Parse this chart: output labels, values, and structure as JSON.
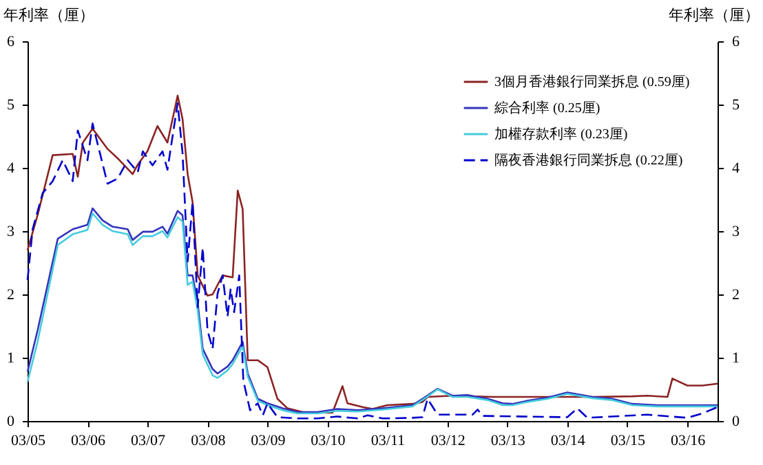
{
  "chart_data": {
    "type": "line",
    "ylabel": "年利率（厘）",
    "y2label": "年利率（厘）",
    "legend": "top right",
    "line_style": "solid",
    "xlim": [
      "2005-03",
      "2016-09"
    ],
    "xticks": [
      {
        "value": "2005-03",
        "label": "03/05"
      },
      {
        "value": "2006-03",
        "label": "03/06"
      },
      {
        "value": "2007-03",
        "label": "03/07"
      },
      {
        "value": "2008-03",
        "label": "03/08"
      },
      {
        "value": "2009-03",
        "label": "03/09"
      },
      {
        "value": "2010-03",
        "label": "03/10"
      },
      {
        "value": "2011-03",
        "label": "03/11"
      },
      {
        "value": "2012-03",
        "label": "03/12"
      },
      {
        "value": "2013-03",
        "label": "03/13"
      },
      {
        "value": "2014-03",
        "label": "03/14"
      },
      {
        "value": "2015-03",
        "label": "03/15"
      },
      {
        "value": "2016-03",
        "label": "03/16"
      }
    ],
    "ylim": [
      0,
      6
    ],
    "yticks": [
      0,
      1,
      2,
      3,
      4,
      5,
      6
    ],
    "y2lim": [
      0,
      6
    ],
    "y2ticks": [
      0,
      1,
      2,
      3,
      4,
      5,
      6
    ],
    "series": [
      {
        "name": "3個月香港銀行同業拆息 (0.59厘)",
        "color": "#8b2323",
        "x": [
          "2005-03",
          "2005-05",
          "2005-08",
          "2005-12",
          "2006-01",
          "2006-02",
          "2006-04",
          "2006-07",
          "2006-09",
          "2006-12",
          "2007-01",
          "2007-03",
          "2007-05",
          "2007-07",
          "2007-09",
          "2007-10",
          "2007-11",
          "2007-12",
          "2008-01",
          "2008-03",
          "2008-04",
          "2008-06",
          "2008-08",
          "2008-09",
          "2008-10",
          "2008-11",
          "2009-01",
          "2009-03",
          "2009-05",
          "2009-07",
          "2009-10",
          "2010-03",
          "2010-04",
          "2010-06",
          "2010-07",
          "2010-10",
          "2010-12",
          "2011-03",
          "2011-08",
          "2011-10",
          "2011-11",
          "2012-04",
          "2012-12",
          "2013-11",
          "2014-08",
          "2015-04",
          "2015-07",
          "2015-11",
          "2015-12",
          "2016-03",
          "2016-06",
          "2016-09"
        ],
        "values": [
          2.7,
          3.25,
          4.2,
          4.22,
          3.86,
          4.4,
          4.62,
          4.3,
          4.15,
          3.9,
          4.05,
          4.26,
          4.66,
          4.4,
          5.14,
          4.77,
          3.9,
          3.46,
          2.3,
          1.98,
          2.0,
          2.3,
          2.27,
          3.64,
          3.35,
          0.96,
          0.96,
          0.85,
          0.35,
          0.2,
          0.14,
          0.13,
          0.13,
          0.55,
          0.28,
          0.22,
          0.19,
          0.25,
          0.27,
          0.3,
          0.38,
          0.4,
          0.38,
          0.38,
          0.38,
          0.39,
          0.4,
          0.38,
          0.67,
          0.56,
          0.56,
          0.59
        ]
      },
      {
        "name": "綜合利率 (0.25厘)",
        "color": "#3333bb",
        "x": [
          "2005-03",
          "2005-05",
          "2005-09",
          "2005-12",
          "2006-03",
          "2006-04",
          "2006-06",
          "2006-08",
          "2006-11",
          "2006-12",
          "2007-02",
          "2007-04",
          "2007-06",
          "2007-07",
          "2007-09",
          "2007-10",
          "2007-11",
          "2007-12",
          "2008-01",
          "2008-02",
          "2008-04",
          "2008-05",
          "2008-07",
          "2008-08",
          "2008-10",
          "2008-11",
          "2009-01",
          "2009-03",
          "2009-06",
          "2009-09",
          "2010-01",
          "2010-05",
          "2010-09",
          "2011-02",
          "2011-08",
          "2011-10",
          "2012-01",
          "2012-04",
          "2012-07",
          "2012-11",
          "2013-02",
          "2013-04",
          "2013-07",
          "2013-11",
          "2014-03",
          "2014-08",
          "2014-12",
          "2015-04",
          "2015-09",
          "2016-03",
          "2016-09"
        ],
        "values": [
          0.78,
          1.43,
          2.88,
          3.03,
          3.1,
          3.36,
          3.17,
          3.07,
          3.03,
          2.86,
          2.99,
          2.99,
          3.07,
          2.96,
          3.32,
          3.25,
          2.3,
          2.3,
          1.87,
          1.14,
          0.82,
          0.75,
          0.86,
          0.96,
          1.25,
          0.75,
          0.35,
          0.28,
          0.2,
          0.14,
          0.14,
          0.19,
          0.17,
          0.2,
          0.25,
          0.35,
          0.51,
          0.4,
          0.41,
          0.35,
          0.28,
          0.27,
          0.32,
          0.37,
          0.45,
          0.38,
          0.35,
          0.27,
          0.25,
          0.25,
          0.25
        ]
      },
      {
        "name": "加權存款利率 (0.23厘)",
        "color": "#44ccdd",
        "x": [
          "2005-03",
          "2005-05",
          "2005-09",
          "2005-12",
          "2006-03",
          "2006-04",
          "2006-06",
          "2006-08",
          "2006-11",
          "2006-12",
          "2007-02",
          "2007-04",
          "2007-06",
          "2007-07",
          "2007-09",
          "2007-10",
          "2007-11",
          "2007-12",
          "2008-01",
          "2008-02",
          "2008-04",
          "2008-05",
          "2008-07",
          "2008-08",
          "2008-10",
          "2008-11",
          "2009-01",
          "2009-03",
          "2009-06",
          "2009-09",
          "2010-01",
          "2010-05",
          "2010-09",
          "2011-02",
          "2011-08",
          "2011-10",
          "2012-01",
          "2012-04",
          "2012-07",
          "2012-11",
          "2013-02",
          "2013-04",
          "2013-07",
          "2013-11",
          "2014-03",
          "2014-08",
          "2014-12",
          "2015-04",
          "2015-09",
          "2016-03",
          "2016-09"
        ],
        "values": [
          0.62,
          1.25,
          2.78,
          2.95,
          3.02,
          3.28,
          3.1,
          3.0,
          2.95,
          2.78,
          2.92,
          2.92,
          3.0,
          2.9,
          3.22,
          3.15,
          2.15,
          2.2,
          1.75,
          1.05,
          0.72,
          0.68,
          0.8,
          0.9,
          1.18,
          0.7,
          0.32,
          0.25,
          0.17,
          0.12,
          0.12,
          0.16,
          0.15,
          0.18,
          0.23,
          0.33,
          0.5,
          0.38,
          0.38,
          0.33,
          0.25,
          0.25,
          0.3,
          0.35,
          0.43,
          0.36,
          0.33,
          0.25,
          0.23,
          0.23,
          0.23
        ]
      },
      {
        "name": "隔夜香港銀行同業拆息 (0.22厘)",
        "color": "#0000cc",
        "line_style": "dashed",
        "x": [
          "2005-03",
          "2005-04",
          "2005-06",
          "2005-08",
          "2005-10",
          "2005-12",
          "2006-01",
          "2006-03",
          "2006-04",
          "2006-07",
          "2006-09",
          "2006-11",
          "2007-01",
          "2007-02",
          "2007-04",
          "2007-06",
          "2007-07",
          "2007-09",
          "2007-10",
          "2007-11",
          "2007-12",
          "2008-01",
          "2008-02",
          "2008-03",
          "2008-04",
          "2008-05",
          "2008-06",
          "2008-07-01",
          "2008-07-20",
          "2008-08-10",
          "2008-09-10",
          "2008-10-05",
          "2008-11-15",
          "2009-01",
          "2009-02",
          "2009-03",
          "2009-05",
          "2009-09",
          "2010-01",
          "2010-05",
          "2010-09",
          "2010-11",
          "2011-02",
          "2011-08",
          "2011-10",
          "2011-11",
          "2012-01",
          "2012-08",
          "2012-09",
          "2012-10",
          "2014-03",
          "2014-05",
          "2014-07",
          "2015-07",
          "2016-03",
          "2016-06",
          "2016-09"
        ],
        "values": [
          2.23,
          3.03,
          3.6,
          3.79,
          4.12,
          3.79,
          4.59,
          4.12,
          4.7,
          3.75,
          3.83,
          4.12,
          3.93,
          4.26,
          4.04,
          4.26,
          3.97,
          5.02,
          4.23,
          2.52,
          3.46,
          1.8,
          2.74,
          1.43,
          1.14,
          2.01,
          2.3,
          1.65,
          2.09,
          1.72,
          2.3,
          0.64,
          0.17,
          0.28,
          0.09,
          0.28,
          0.06,
          0.04,
          0.04,
          0.07,
          0.04,
          0.09,
          0.04,
          0.05,
          0.06,
          0.35,
          0.1,
          0.1,
          0.18,
          0.08,
          0.06,
          0.2,
          0.05,
          0.1,
          0.05,
          0.12,
          0.22
        ]
      }
    ]
  }
}
